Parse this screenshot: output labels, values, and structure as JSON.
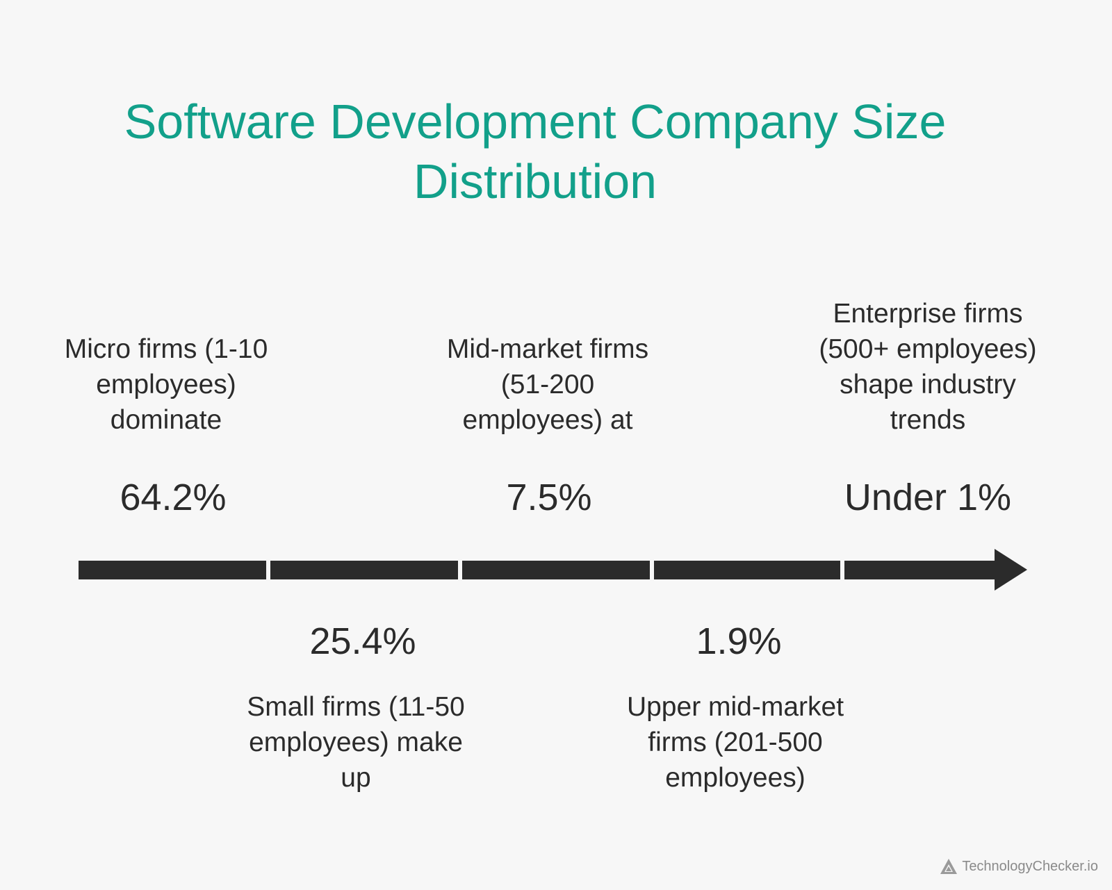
{
  "title_lines": [
    "Software Development Company Size",
    "Distribution"
  ],
  "stages": [
    {
      "position": "above",
      "label_lines": [
        "Micro firms (1-10",
        "employees)",
        "dominate"
      ],
      "value": "64.2%"
    },
    {
      "position": "below",
      "label_lines": [
        "Small firms (11-50",
        "employees) make",
        "up"
      ],
      "value": "25.4%"
    },
    {
      "position": "above",
      "label_lines": [
        "Mid-market firms",
        "(51-200",
        "employees) at"
      ],
      "value": "7.5%"
    },
    {
      "position": "below",
      "label_lines": [
        "Upper mid-market",
        "firms (201-500",
        "employees)"
      ],
      "value": "1.9%"
    },
    {
      "position": "above",
      "label_lines": [
        "Enterprise firms",
        "(500+ employees)",
        "shape industry",
        "trends"
      ],
      "value": "Under 1%"
    }
  ],
  "colors": {
    "title": "#12a08a",
    "timeline": "#2b2b2b",
    "background": "#f7f7f7"
  },
  "brand": {
    "icon": "triangle-logo-icon",
    "text": "TechnologyChecker.io"
  }
}
